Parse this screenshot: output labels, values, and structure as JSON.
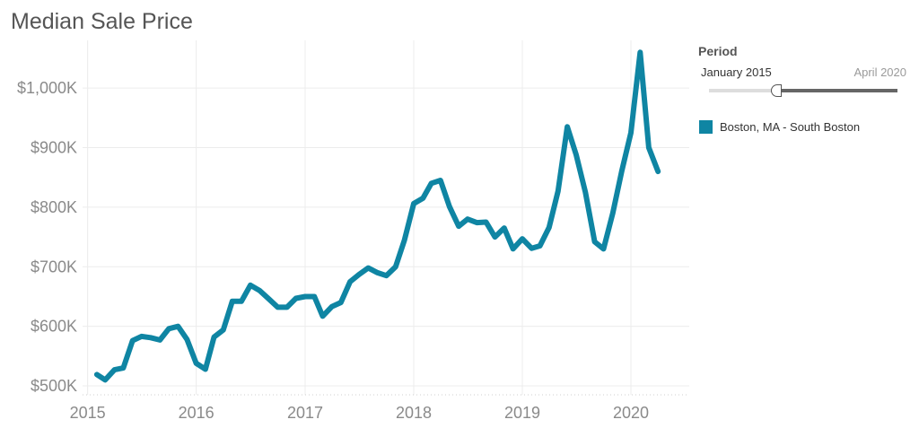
{
  "title": "Median Sale Price",
  "filter": {
    "title": "Period",
    "start_label": "January 2015",
    "end_label": "April 2020",
    "selected_start_fraction": 0.36
  },
  "colors": {
    "series": "#0f85a3",
    "grid": "#ececec",
    "axis_text": "#8a8a8a",
    "title": "#555555"
  },
  "chart_data": {
    "type": "line",
    "title": "Median Sale Price",
    "xlabel": "",
    "ylabel": "",
    "x_ticks": [
      "2015",
      "2016",
      "2017",
      "2018",
      "2019",
      "2020"
    ],
    "y_ticks": [
      "$500K",
      "$600K",
      "$700K",
      "$800K",
      "$900K",
      "$1,000K"
    ],
    "y_tick_values": [
      500,
      600,
      700,
      800,
      900,
      1000
    ],
    "ylim": [
      485,
      1080
    ],
    "xlim": [
      "2014-12-15",
      "2020-07-15"
    ],
    "grid": true,
    "legend_position": "right",
    "series": [
      {
        "name": "Boston, MA - South Boston",
        "color": "#0f85a3",
        "x": [
          "2015-02",
          "2015-03",
          "2015-04",
          "2015-05",
          "2015-06",
          "2015-07",
          "2015-08",
          "2015-09",
          "2015-10",
          "2015-11",
          "2015-12",
          "2016-01",
          "2016-02",
          "2016-03",
          "2016-04",
          "2016-05",
          "2016-06",
          "2016-07",
          "2016-08",
          "2016-09",
          "2016-10",
          "2016-11",
          "2016-12",
          "2017-01",
          "2017-02",
          "2017-03",
          "2017-04",
          "2017-05",
          "2017-06",
          "2017-07",
          "2017-08",
          "2017-09",
          "2017-10",
          "2017-11",
          "2017-12",
          "2018-01",
          "2018-02",
          "2018-03",
          "2018-04",
          "2018-05",
          "2018-06",
          "2018-07",
          "2018-08",
          "2018-09",
          "2018-10",
          "2018-11",
          "2018-12",
          "2019-01",
          "2019-02",
          "2019-03",
          "2019-04",
          "2019-05",
          "2019-06",
          "2019-07",
          "2019-08",
          "2019-09",
          "2019-10",
          "2019-11",
          "2019-12",
          "2020-01",
          "2020-02",
          "2020-03",
          "2020-04"
        ],
        "values": [
          519,
          510,
          527,
          530,
          576,
          583,
          581,
          577,
          596,
          600,
          578,
          538,
          528,
          582,
          594,
          642,
          642,
          669,
          660,
          646,
          632,
          632,
          647,
          650,
          650,
          617,
          633,
          640,
          675,
          687,
          698,
          690,
          685,
          700,
          745,
          806,
          815,
          840,
          845,
          801,
          768,
          780,
          774,
          775,
          750,
          765,
          730,
          747,
          731,
          735,
          766,
          827,
          935,
          888,
          825,
          742,
          730,
          790,
          860,
          925,
          1060,
          900,
          860
        ]
      }
    ]
  }
}
